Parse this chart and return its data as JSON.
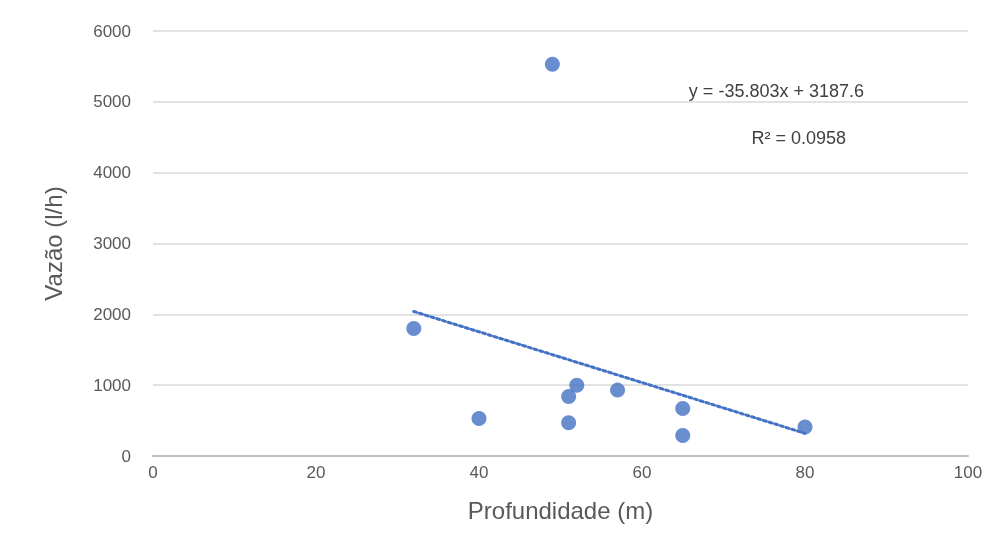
{
  "chart_data": {
    "type": "scatter",
    "xlabel": "Profundidade (m)",
    "ylabel": "Vazão (l/h)",
    "x": [
      32,
      40,
      49,
      51,
      51,
      52,
      57,
      65,
      65,
      80
    ],
    "series": [
      {
        "color": "#4472c4",
        "values": [
          1800,
          530,
          5530,
          840,
          470,
          1000,
          930,
          670,
          290,
          410
        ],
        "marker": "circle"
      },
      {
        "type": "line",
        "color": "#4472c4",
        "x": [
          32,
          80
        ],
        "values": [
          2040,
          320
        ],
        "line_style": "dotted",
        "marker": "none"
      }
    ],
    "annotations": [
      "y = -35.803x + 3187.6",
      "R² = 0.0958"
    ],
    "xlim": [
      0,
      100
    ],
    "xticks": [
      0,
      20,
      40,
      60,
      80,
      100
    ],
    "ylim": [
      0,
      6000
    ],
    "yticks": [
      0,
      1000,
      2000,
      3000,
      4000,
      5000,
      6000
    ],
    "grid": "y"
  }
}
